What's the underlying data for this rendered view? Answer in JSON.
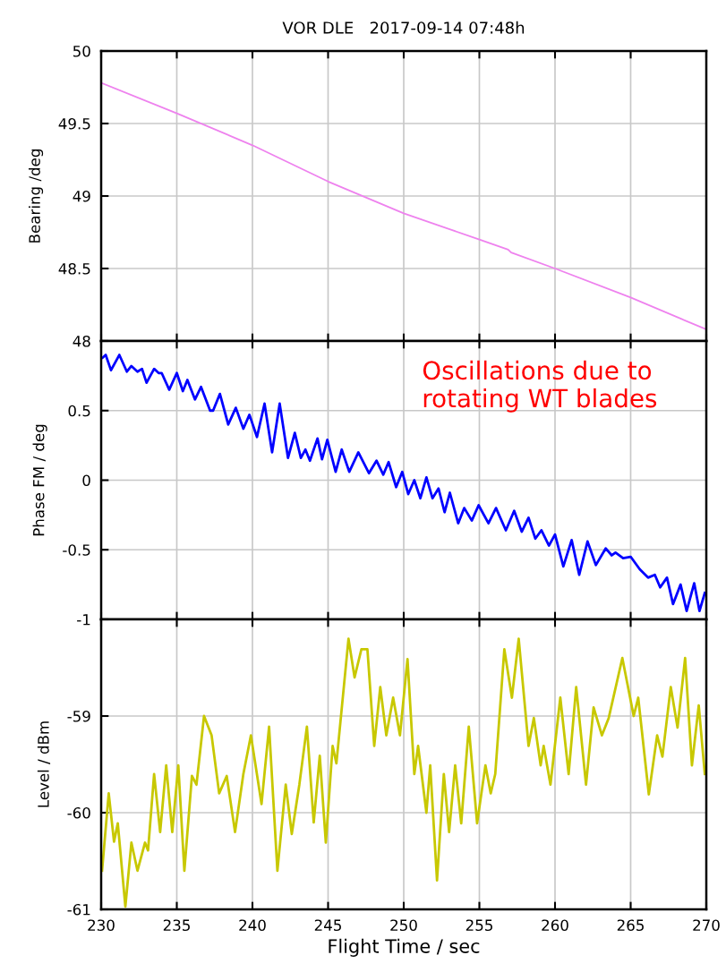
{
  "chart_data": [
    {
      "type": "line",
      "title": "VOR DLE   2017-09-14 07:48h",
      "ylabel": "Bearing /deg",
      "xlim": [
        230,
        270
      ],
      "xticks": [
        230,
        235,
        240,
        245,
        250,
        255,
        260,
        265,
        270
      ],
      "ylim": [
        48,
        50
      ],
      "yticks": [
        48,
        48.5,
        49,
        49.5,
        50
      ],
      "grid": true,
      "tick_labels": "y",
      "series": [
        {
          "color": "#ee82ee",
          "x": [
            230,
            235,
            240,
            245,
            250,
            255,
            256.9,
            257.1,
            260,
            265,
            270
          ],
          "values": [
            49.78,
            49.57,
            49.35,
            49.1,
            48.88,
            48.7,
            48.63,
            48.61,
            48.5,
            48.3,
            48.08
          ]
        }
      ]
    },
    {
      "type": "line",
      "ylabel": "Phase FM / deg",
      "xlim": [
        230,
        270
      ],
      "xticks": [
        230,
        235,
        240,
        245,
        250,
        255,
        260,
        265,
        270
      ],
      "ylim": [
        -1,
        1
      ],
      "yticks": [
        {
          "value": 1,
          "label": null
        },
        0.5,
        0,
        {
          "value": -0.5,
          "label": "-0.5"
        },
        {
          "value": -1,
          "label": "-1"
        }
      ],
      "grid": true,
      "tick_labels": "y",
      "annotations": [
        "Oscillations due to\nrotating WT blades"
      ],
      "series": [
        {
          "color": "#0000ff",
          "x": [
            230.1,
            230.3,
            230.65,
            231.2,
            231.7,
            232.0,
            232.4,
            232.7,
            233.0,
            233.5,
            233.8,
            234.0,
            234.5,
            235.0,
            235.4,
            235.7,
            236.2,
            236.6,
            237.2,
            237.4,
            237.85,
            238.4,
            238.9,
            239.4,
            239.8,
            240.3,
            240.8,
            241.3,
            241.8,
            242.35,
            242.8,
            243.2,
            243.5,
            243.8,
            244.3,
            244.6,
            244.95,
            245.5,
            245.9,
            246.4,
            247.0,
            247.7,
            248.2,
            248.65,
            249.0,
            249.5,
            249.9,
            250.3,
            250.7,
            251.1,
            251.5,
            251.9,
            252.3,
            252.7,
            253.05,
            253.6,
            254.0,
            254.5,
            254.95,
            255.6,
            256.1,
            256.75,
            257.3,
            257.8,
            258.25,
            258.7,
            259.1,
            259.6,
            260.0,
            260.55,
            261.1,
            261.6,
            262.15,
            262.7,
            263.35,
            263.75,
            264.0,
            264.5,
            265.0,
            265.6,
            266.15,
            266.6,
            266.95,
            267.4,
            267.8,
            268.3,
            268.7,
            269.2,
            269.55,
            269.9
          ],
          "values": [
            0.88,
            0.9,
            0.79,
            0.9,
            0.78,
            0.82,
            0.78,
            0.8,
            0.7,
            0.8,
            0.77,
            0.77,
            0.65,
            0.77,
            0.64,
            0.72,
            0.58,
            0.67,
            0.5,
            0.5,
            0.62,
            0.4,
            0.52,
            0.37,
            0.47,
            0.31,
            0.55,
            0.2,
            0.55,
            0.16,
            0.34,
            0.16,
            0.22,
            0.14,
            0.3,
            0.15,
            0.29,
            0.06,
            0.22,
            0.06,
            0.2,
            0.05,
            0.14,
            0.04,
            0.13,
            -0.05,
            0.06,
            -0.1,
            0.0,
            -0.13,
            0.02,
            -0.13,
            -0.06,
            -0.23,
            -0.09,
            -0.31,
            -0.2,
            -0.29,
            -0.18,
            -0.31,
            -0.2,
            -0.36,
            -0.22,
            -0.37,
            -0.27,
            -0.42,
            -0.36,
            -0.47,
            -0.39,
            -0.62,
            -0.43,
            -0.68,
            -0.44,
            -0.61,
            -0.49,
            -0.54,
            -0.52,
            -0.56,
            -0.55,
            -0.64,
            -0.7,
            -0.68,
            -0.77,
            -0.7,
            -0.89,
            -0.75,
            -0.94,
            -0.74,
            -0.94,
            -0.81
          ]
        }
      ]
    },
    {
      "type": "line",
      "ylabel": "Level / dBm",
      "xlabel": "Flight Time / sec",
      "xlim": [
        230,
        270
      ],
      "xticks": [
        230,
        235,
        240,
        245,
        250,
        255,
        260,
        265,
        270
      ],
      "ylim": [
        -61,
        -58
      ],
      "yticks": [
        {
          "value": -61,
          "label": "-61"
        },
        {
          "value": -60,
          "label": "-60"
        },
        {
          "value": -59,
          "label": "-59"
        },
        {
          "value": -58,
          "label": null
        }
      ],
      "grid": true,
      "series": [
        {
          "color": "#c8c800",
          "x": [
            230.06,
            230.5,
            230.85,
            231.1,
            231.6,
            232.0,
            232.4,
            232.9,
            233.1,
            233.5,
            233.9,
            234.3,
            234.7,
            235.1,
            235.5,
            236.0,
            236.3,
            236.8,
            237.3,
            237.8,
            238.3,
            238.85,
            239.4,
            239.9,
            240.6,
            241.1,
            241.65,
            242.2,
            242.6,
            243.1,
            243.6,
            244.05,
            244.45,
            244.85,
            245.3,
            245.55,
            246.35,
            246.75,
            247.2,
            247.6,
            248.05,
            248.45,
            248.85,
            249.3,
            249.75,
            250.25,
            250.7,
            250.95,
            251.5,
            251.75,
            252.2,
            252.65,
            253.0,
            253.4,
            253.8,
            254.3,
            254.85,
            255.4,
            255.75,
            256.05,
            256.65,
            257.15,
            257.6,
            258.25,
            258.6,
            259.05,
            259.25,
            259.7,
            260.35,
            260.9,
            261.4,
            262.05,
            262.55,
            263.1,
            263.55,
            264.45,
            265.2,
            265.5,
            266.2,
            266.75,
            267.1,
            267.65,
            268.1,
            268.6,
            269.05,
            269.5,
            269.9
          ],
          "values": [
            -60.6,
            -59.8,
            -60.3,
            -60.11,
            -60.97,
            -60.31,
            -60.6,
            -60.31,
            -60.39,
            -59.6,
            -60.2,
            -59.51,
            -60.2,
            -59.51,
            -60.6,
            -59.62,
            -59.71,
            -59.0,
            -59.2,
            -59.8,
            -59.62,
            -60.2,
            -59.6,
            -59.2,
            -59.91,
            -59.11,
            -60.6,
            -59.71,
            -60.22,
            -59.71,
            -59.11,
            -60.1,
            -59.41,
            -60.31,
            -59.31,
            -59.49,
            -58.2,
            -58.6,
            -58.31,
            -58.31,
            -59.31,
            -58.7,
            -59.2,
            -58.81,
            -59.2,
            -58.41,
            -59.6,
            -59.31,
            -60.0,
            -59.51,
            -60.7,
            -59.6,
            -60.2,
            -59.51,
            -60.11,
            -59.11,
            -60.11,
            -59.51,
            -59.8,
            -59.6,
            -58.31,
            -58.81,
            -58.2,
            -59.31,
            -59.02,
            -59.51,
            -59.31,
            -59.71,
            -58.81,
            -59.6,
            -58.7,
            -59.71,
            -58.91,
            -59.2,
            -59.02,
            -58.4,
            -59.0,
            -58.81,
            -59.81,
            -59.2,
            -59.42,
            -58.7,
            -59.12,
            -58.4,
            -59.51,
            -58.89,
            -59.6
          ]
        }
      ]
    }
  ]
}
